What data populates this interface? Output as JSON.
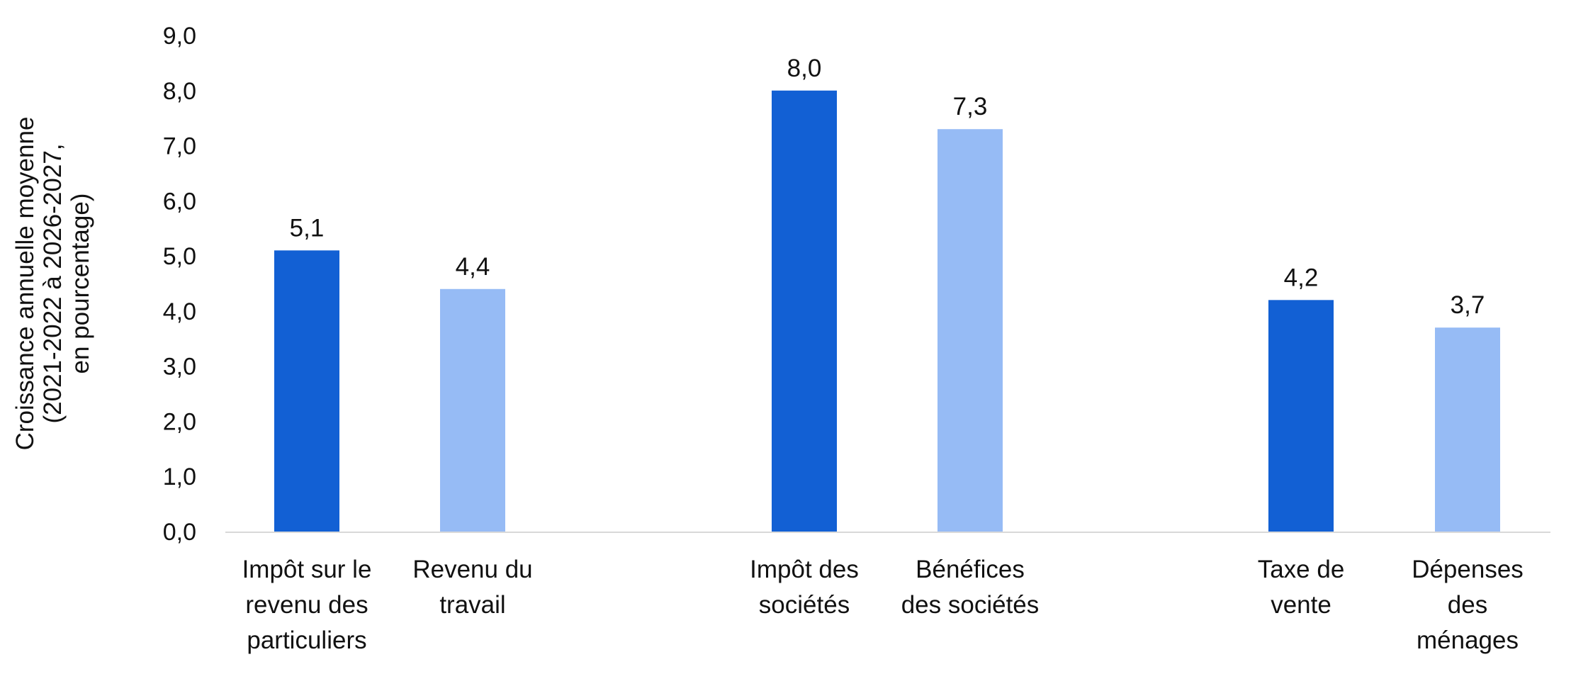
{
  "chart_data": {
    "type": "bar",
    "categories": [
      "Impôt sur le revenu des particuliers",
      "Revenu du travail",
      "Impôt des sociétés",
      "Bénéfices des sociétés",
      "Taxe de vente",
      "Dépenses des ménages"
    ],
    "category_lines": [
      [
        "Impôt sur le",
        "revenu des",
        "particuliers"
      ],
      [
        "Revenu du",
        "travail"
      ],
      [
        "Impôt des",
        "sociétés"
      ],
      [
        "Bénéfices",
        "des sociétés"
      ],
      [
        "Taxe de",
        "vente"
      ],
      [
        "Dépenses",
        "des",
        "ménages"
      ]
    ],
    "values": [
      5.1,
      4.4,
      8.0,
      7.3,
      4.2,
      3.7
    ],
    "value_labels": [
      "5,1",
      "4,4",
      "8,0",
      "7,3",
      "4,2",
      "3,7"
    ],
    "bar_colors": [
      "#1260d4",
      "#96bbf5",
      "#1260d4",
      "#96bbf5",
      "#1260d4",
      "#96bbf5"
    ],
    "ylabel_lines": [
      "Croissance annuelle moyenne",
      "(2021-2022 à 2026-2027,",
      "en pourcentage)"
    ],
    "ylim": [
      0,
      9
    ],
    "y_ticks": [
      "0,0",
      "1,0",
      "2,0",
      "3,0",
      "4,0",
      "5,0",
      "6,0",
      "7,0",
      "8,0",
      "9,0"
    ],
    "grid": false,
    "legend": "none",
    "axis_color": "#d9d9d9"
  }
}
